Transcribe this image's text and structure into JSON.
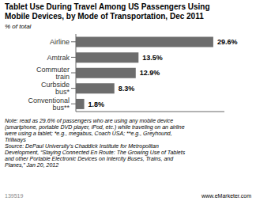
{
  "chart_data": {
    "type": "bar",
    "orientation": "horizontal",
    "title": "Tablet Use During Travel Among US Passengers Using\nMobile Devices, by Mode of Transportation, Dec 2011",
    "subtitle": "% of total",
    "categories": [
      "Airline",
      "Amtrak",
      "Commuter train",
      "Curbside bus*",
      "Conventional bus**"
    ],
    "values": [
      29.6,
      13.5,
      12.9,
      8.3,
      1.8
    ],
    "value_labels": [
      "29.6%",
      "13.5%",
      "12.9%",
      "8.3%",
      "1.8%"
    ],
    "data_labels": true,
    "tick_labels": "y",
    "color": "#6d6d6d",
    "xlim": [
      0,
      32
    ],
    "grid": false,
    "annotations": [
      "Note: read as 29.6% of passengers who are using any mobile device\n(smartphone, portable DVD player, iPod, etc.) while traveling on an airline\nwere using a tablet; *e.g., megabus, Coach USA; **e.g., Greyhound,\nTrillways\nSource: DePaul University’s Chaddick Institute for Metropolitan\nDevelopment, “Staying Connected En Route: The Growing Use of Tablets\nand other Portable Electronic Devices on Intercity Buses, Trains, and\nPlanes,” Jan 20, 2012",
      "139519",
      "www.eMarketer.com"
    ]
  }
}
